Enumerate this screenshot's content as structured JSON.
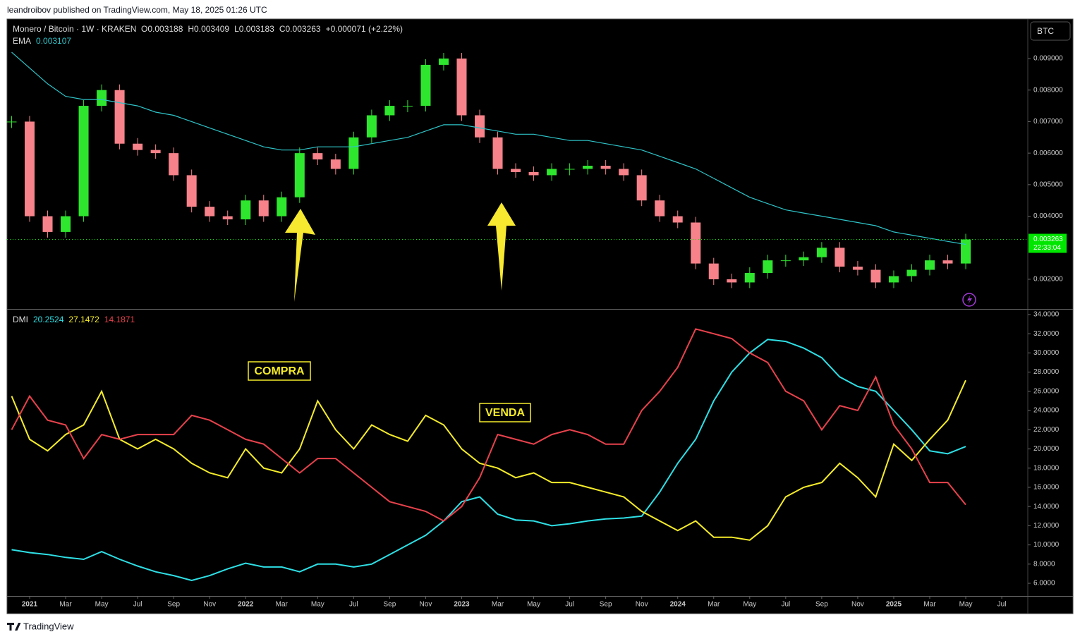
{
  "header": {
    "publisher": "leandroibov published on TradingView.com, May 18, 2025 01:26 UTC",
    "brand": "TradingView",
    "currency": "BTC"
  },
  "annotations": {
    "buy": "COMPRA",
    "sell": "VENDA"
  },
  "chart_data": [
    {
      "type": "candlestick",
      "title": "Monero / Bitcoin · 1W · KRAKEN",
      "ohlc": [
        "O0.003188",
        "H0.003409",
        "L0.003183",
        "C0.003263",
        "+0.000071 (+2.22%)"
      ],
      "x": [
        "2020-12",
        "2021-01",
        "2021-02",
        "2021-03",
        "2021-04",
        "2021-05",
        "2021-06",
        "2021-07",
        "2021-08",
        "2021-09",
        "2021-10",
        "2021-11",
        "2021-12",
        "2022-01",
        "2022-02",
        "2022-03",
        "2022-04",
        "2022-05",
        "2022-06",
        "2022-07",
        "2022-08",
        "2022-09",
        "2022-10",
        "2022-11",
        "2022-12",
        "2023-01",
        "2023-02",
        "2023-03",
        "2023-04",
        "2023-05",
        "2023-06",
        "2023-07",
        "2023-08",
        "2023-09",
        "2023-10",
        "2023-11",
        "2023-12",
        "2024-01",
        "2024-02",
        "2024-03",
        "2024-04",
        "2024-05",
        "2024-06",
        "2024-07",
        "2024-08",
        "2024-09",
        "2024-10",
        "2024-11",
        "2024-12",
        "2025-01",
        "2025-02",
        "2025-03",
        "2025-04",
        "2025-05"
      ],
      "close": [
        0.007,
        0.004,
        0.0035,
        0.004,
        0.0075,
        0.008,
        0.0063,
        0.0061,
        0.006,
        0.0053,
        0.0043,
        0.004,
        0.0039,
        0.0045,
        0.004,
        0.0046,
        0.006,
        0.0058,
        0.0055,
        0.0065,
        0.0072,
        0.0075,
        0.0075,
        0.0088,
        0.009,
        0.0072,
        0.0065,
        0.0055,
        0.0054,
        0.0053,
        0.0055,
        0.0055,
        0.0056,
        0.0055,
        0.0053,
        0.0045,
        0.004,
        0.0038,
        0.0025,
        0.002,
        0.0019,
        0.0022,
        0.0026,
        0.0026,
        0.0027,
        0.003,
        0.0024,
        0.0023,
        0.0019,
        0.0021,
        0.0023,
        0.0026,
        0.0025,
        0.003263
      ],
      "up_color": "#2ee62e",
      "down_color": "#f7828a",
      "series": [
        {
          "name": "EMA",
          "color": "#2ec4c9",
          "legend_value": "0.003107",
          "values": [
            0.0092,
            0.0087,
            0.0082,
            0.0078,
            0.0077,
            0.0077,
            0.0076,
            0.0075,
            0.0073,
            0.0072,
            0.007,
            0.0068,
            0.0066,
            0.0064,
            0.0062,
            0.0061,
            0.0061,
            0.0062,
            0.0062,
            0.0062,
            0.0063,
            0.0064,
            0.0065,
            0.0067,
            0.0069,
            0.0069,
            0.0068,
            0.0067,
            0.0066,
            0.0066,
            0.0065,
            0.0064,
            0.0064,
            0.0063,
            0.0062,
            0.0061,
            0.0059,
            0.0057,
            0.0055,
            0.0052,
            0.0049,
            0.0046,
            0.0044,
            0.0042,
            0.0041,
            0.004,
            0.0039,
            0.0038,
            0.0037,
            0.0035,
            0.0034,
            0.0033,
            0.0032,
            0.003107
          ]
        }
      ],
      "last_price_label": "0.003263",
      "countdown": "22:33:04",
      "last_price_color": "#00e600",
      "ylim": [
        0.00106,
        0.01023
      ],
      "yticks": [
        {
          "value": 0.002,
          "label": "0.002000"
        },
        {
          "value": 0.004,
          "label": "0.004000"
        },
        {
          "value": 0.005,
          "label": "0.005000"
        },
        {
          "value": 0.006,
          "label": "0.006000"
        },
        {
          "value": 0.007,
          "label": "0.007000"
        },
        {
          "value": 0.008,
          "label": "0.008000"
        },
        {
          "value": 0.009,
          "label": "0.009000"
        }
      ]
    },
    {
      "type": "line",
      "title": "DMI",
      "x": [
        "2020-12",
        "2021-01",
        "2021-02",
        "2021-03",
        "2021-04",
        "2021-05",
        "2021-06",
        "2021-07",
        "2021-08",
        "2021-09",
        "2021-10",
        "2021-11",
        "2021-12",
        "2022-01",
        "2022-02",
        "2022-03",
        "2022-04",
        "2022-05",
        "2022-06",
        "2022-07",
        "2022-08",
        "2022-09",
        "2022-10",
        "2022-11",
        "2022-12",
        "2023-01",
        "2023-02",
        "2023-03",
        "2023-04",
        "2023-05",
        "2023-06",
        "2023-07",
        "2023-08",
        "2023-09",
        "2023-10",
        "2023-11",
        "2023-12",
        "2024-01",
        "2024-02",
        "2024-03",
        "2024-04",
        "2024-05",
        "2024-06",
        "2024-07",
        "2024-08",
        "2024-09",
        "2024-10",
        "2024-11",
        "2024-12",
        "2025-01",
        "2025-02",
        "2025-03",
        "2025-04",
        "2025-05"
      ],
      "series": [
        {
          "color": "#2ee0e6",
          "legend_value": "20.2524",
          "values": [
            9.5,
            9.2,
            9.0,
            8.7,
            8.5,
            9.3,
            8.5,
            7.8,
            7.2,
            6.8,
            6.3,
            6.8,
            7.5,
            8.1,
            7.7,
            7.7,
            7.2,
            8.0,
            8.0,
            7.7,
            8.0,
            9.0,
            10.0,
            11.0,
            12.5,
            14.5,
            15.0,
            13.2,
            12.6,
            12.5,
            12.0,
            12.2,
            12.5,
            12.7,
            12.8,
            13.0,
            15.5,
            18.5,
            21.0,
            25.0,
            28.0,
            30.0,
            31.4,
            31.2,
            30.5,
            29.5,
            27.5,
            26.5,
            26.0,
            24.0,
            22.0,
            19.8,
            19.5,
            20.2524
          ]
        },
        {
          "color": "#f5ec2a",
          "legend_value": "27.1472",
          "values": [
            25.5,
            21.0,
            19.8,
            21.5,
            22.5,
            26.0,
            21.0,
            20.0,
            21.0,
            20.0,
            18.5,
            17.5,
            17.0,
            20.0,
            18.0,
            17.5,
            20.0,
            25.0,
            22.0,
            20.0,
            22.5,
            21.5,
            20.8,
            23.5,
            22.5,
            20.0,
            18.5,
            18.0,
            17.0,
            17.5,
            16.5,
            16.5,
            16.0,
            15.5,
            15.0,
            13.5,
            12.5,
            11.5,
            12.5,
            10.8,
            10.8,
            10.5,
            12.0,
            15.0,
            16.0,
            16.5,
            18.5,
            17.0,
            15.0,
            20.5,
            18.8,
            21.0,
            23.0,
            27.1472
          ]
        },
        {
          "color": "#e8424c",
          "legend_value": "14.1871",
          "values": [
            22.0,
            25.5,
            23.0,
            22.5,
            19.0,
            21.5,
            21.0,
            21.5,
            21.5,
            21.5,
            23.5,
            23.0,
            22.0,
            21.0,
            20.5,
            19.0,
            17.5,
            19.0,
            19.0,
            17.5,
            16.0,
            14.5,
            14.0,
            13.5,
            12.5,
            14.0,
            17.0,
            21.5,
            21.0,
            20.5,
            21.5,
            22.0,
            21.5,
            20.5,
            20.5,
            24.0,
            26.0,
            28.5,
            32.5,
            32.0,
            31.5,
            30.0,
            29.0,
            26.0,
            25.0,
            22.0,
            24.5,
            24.0,
            27.5,
            22.5,
            20.0,
            16.5,
            16.5,
            14.1871
          ]
        }
      ],
      "ylim": [
        4.68,
        34.51
      ],
      "yticks": [
        {
          "value": 6,
          "label": "6.0000"
        },
        {
          "value": 8,
          "label": "8.0000"
        },
        {
          "value": 10,
          "label": "10.0000"
        },
        {
          "value": 12,
          "label": "12.0000"
        },
        {
          "value": 14,
          "label": "14.0000"
        },
        {
          "value": 16,
          "label": "16.0000"
        },
        {
          "value": 18,
          "label": "18.0000"
        },
        {
          "value": 20,
          "label": "20.0000"
        },
        {
          "value": 22,
          "label": "22.0000"
        },
        {
          "value": 24,
          "label": "24.0000"
        },
        {
          "value": 26,
          "label": "26.0000"
        },
        {
          "value": 28,
          "label": "28.0000"
        },
        {
          "value": 30,
          "label": "30.0000"
        },
        {
          "value": 32,
          "label": "32.0000"
        },
        {
          "value": 34,
          "label": "34.0000"
        }
      ],
      "xticks": [
        {
          "value": "2021-01",
          "label": "2021"
        },
        {
          "value": "2021-03",
          "label": "Mar"
        },
        {
          "value": "2021-05",
          "label": "May"
        },
        {
          "value": "2021-07",
          "label": "Jul"
        },
        {
          "value": "2021-09",
          "label": "Sep"
        },
        {
          "value": "2021-11",
          "label": "Nov"
        },
        {
          "value": "2022-01",
          "label": "2022"
        },
        {
          "value": "2022-03",
          "label": "Mar"
        },
        {
          "value": "2022-05",
          "label": "May"
        },
        {
          "value": "2022-07",
          "label": "Jul"
        },
        {
          "value": "2022-09",
          "label": "Sep"
        },
        {
          "value": "2022-11",
          "label": "Nov"
        },
        {
          "value": "2023-01",
          "label": "2023"
        },
        {
          "value": "2023-03",
          "label": "Mar"
        },
        {
          "value": "2023-05",
          "label": "May"
        },
        {
          "value": "2023-07",
          "label": "Jul"
        },
        {
          "value": "2023-09",
          "label": "Sep"
        },
        {
          "value": "2023-11",
          "label": "Nov"
        },
        {
          "value": "2024-01",
          "label": "2024"
        },
        {
          "value": "2024-03",
          "label": "Mar"
        },
        {
          "value": "2024-05",
          "label": "May"
        },
        {
          "value": "2024-07",
          "label": "Jul"
        },
        {
          "value": "2024-09",
          "label": "Sep"
        },
        {
          "value": "2024-11",
          "label": "Nov"
        },
        {
          "value": "2025-01",
          "label": "2025"
        },
        {
          "value": "2025-03",
          "label": "Mar"
        },
        {
          "value": "2025-05",
          "label": "May"
        },
        {
          "value": "2025-07",
          "label": "Jul"
        }
      ]
    }
  ]
}
